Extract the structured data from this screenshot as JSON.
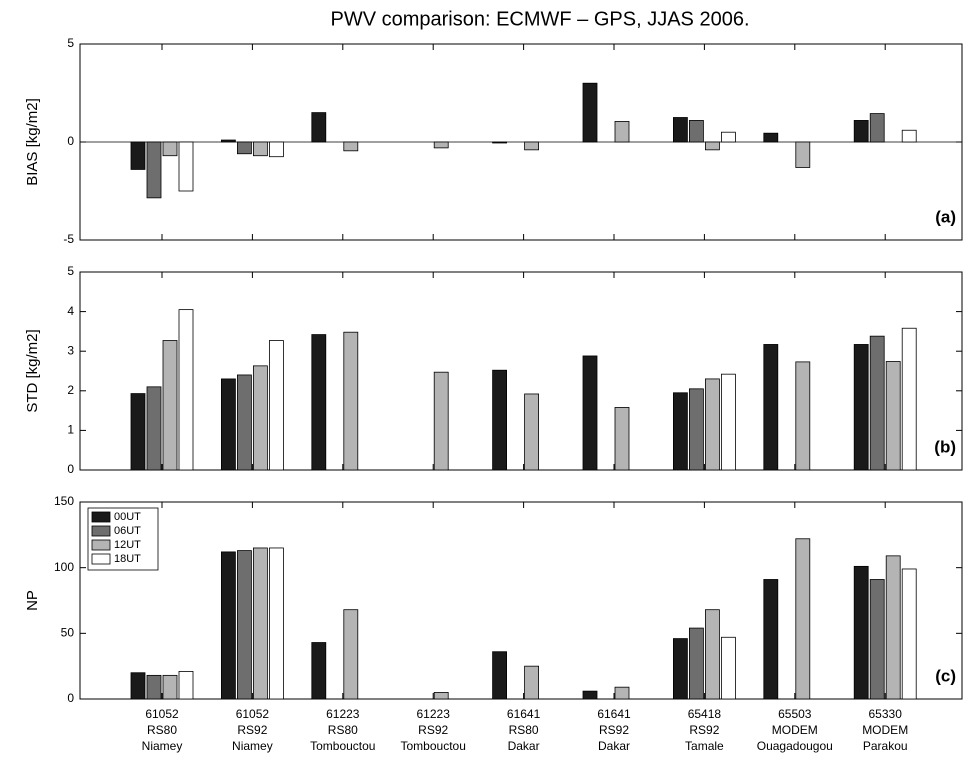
{
  "chart_data": [
    {
      "type": "bar",
      "title": "PWV comparison: ECMWF – GPS, JJAS 2006.",
      "ylabel": "BIAS [kg/m2]",
      "annotation": "(a)",
      "ylim": [
        -5,
        5
      ],
      "yticks": [
        -5,
        0,
        5
      ],
      "series": [
        {
          "color": "#1a1a1a",
          "values": [
            -1.4,
            0.1,
            1.5,
            0,
            -0.05,
            3.0,
            1.25,
            0.45,
            1.1
          ]
        },
        {
          "color": "#6e6e6e",
          "values": [
            -2.85,
            -0.6,
            0,
            0,
            0,
            0,
            1.1,
            0,
            1.45
          ]
        },
        {
          "color": "#b4b4b4",
          "values": [
            -0.7,
            -0.7,
            -0.45,
            -0.3,
            -0.4,
            1.05,
            -0.4,
            -1.3,
            0
          ]
        },
        {
          "color": "#ffffff",
          "values": [
            -2.5,
            -0.75,
            0,
            0,
            0,
            0,
            0.5,
            0,
            0.6
          ]
        }
      ]
    },
    {
      "type": "bar",
      "ylabel": "STD [kg/m2]",
      "annotation": "(b)",
      "ylim": [
        0,
        5
      ],
      "yticks": [
        0,
        1,
        2,
        3,
        4,
        5
      ],
      "series": [
        {
          "color": "#1a1a1a",
          "values": [
            1.93,
            2.3,
            3.42,
            0,
            2.52,
            2.88,
            1.95,
            3.17,
            3.17
          ]
        },
        {
          "color": "#6e6e6e",
          "values": [
            2.1,
            2.4,
            0,
            0,
            0,
            0,
            2.05,
            0,
            3.38
          ]
        },
        {
          "color": "#b4b4b4",
          "values": [
            3.27,
            2.63,
            3.48,
            2.47,
            1.92,
            1.58,
            2.3,
            2.73,
            2.74
          ]
        },
        {
          "color": "#ffffff",
          "values": [
            4.05,
            3.27,
            0,
            0,
            0,
            0,
            2.42,
            0,
            3.58
          ]
        }
      ]
    },
    {
      "type": "bar",
      "ylabel": "NP",
      "annotation": "(c)",
      "ylim": [
        0,
        150
      ],
      "yticks": [
        0,
        50,
        100,
        150
      ],
      "legend": "upper left",
      "categories": [
        [
          "61052",
          "RS80",
          "Niamey"
        ],
        [
          "61052",
          "RS92",
          "Niamey"
        ],
        [
          "61223",
          "RS80",
          "Tombouctou"
        ],
        [
          "61223",
          "RS92",
          "Tombouctou"
        ],
        [
          "61641",
          "RS80",
          "Dakar"
        ],
        [
          "61641",
          "RS92",
          "Dakar"
        ],
        [
          "65418",
          "RS92",
          "Tamale"
        ],
        [
          "65503",
          "MODEM",
          "Ouagadougou"
        ],
        [
          "65330",
          "MODEM",
          "Parakou"
        ]
      ],
      "series": [
        {
          "name": "00UT",
          "color": "#1a1a1a",
          "values": [
            20,
            112,
            43,
            0,
            36,
            6,
            46,
            91,
            101
          ]
        },
        {
          "name": "06UT",
          "color": "#6e6e6e",
          "values": [
            18,
            113,
            0,
            0,
            0,
            0,
            54,
            0,
            91
          ]
        },
        {
          "name": "12UT",
          "color": "#b4b4b4",
          "values": [
            18,
            115,
            68,
            5,
            25,
            9,
            68,
            122,
            109
          ]
        },
        {
          "name": "18UT",
          "color": "#ffffff",
          "values": [
            21,
            115,
            0,
            0,
            0,
            0,
            47,
            0,
            99
          ]
        }
      ]
    }
  ]
}
